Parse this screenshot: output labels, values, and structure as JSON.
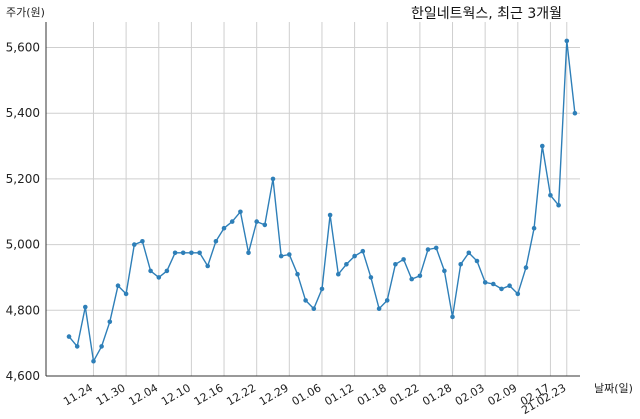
{
  "chart_data": {
    "type": "line",
    "title": "한일네트웍스, 최근 3개월",
    "ylabel": "주가(원)",
    "xlabel": "날짜(일)",
    "ylim": [
      4600,
      5700
    ],
    "yticks": [
      4600,
      4800,
      5000,
      5200,
      5400,
      5600
    ],
    "ytick_labels": [
      "4,600",
      "4,800",
      "5,000",
      "5,200",
      "5,400",
      "5,600"
    ],
    "xticks": [
      {
        "index": 3,
        "label": "11.24"
      },
      {
        "index": 7,
        "label": "11.30"
      },
      {
        "index": 11,
        "label": "12.04"
      },
      {
        "index": 15,
        "label": "12.10"
      },
      {
        "index": 19,
        "label": "12.16"
      },
      {
        "index": 23,
        "label": "12.22"
      },
      {
        "index": 27,
        "label": "12.29"
      },
      {
        "index": 31,
        "label": "01.06"
      },
      {
        "index": 35,
        "label": "01.12"
      },
      {
        "index": 39,
        "label": "01.18"
      },
      {
        "index": 43,
        "label": "01.22"
      },
      {
        "index": 47,
        "label": "01.28"
      },
      {
        "index": 51,
        "label": "02.03"
      },
      {
        "index": 55,
        "label": "02.09"
      },
      {
        "index": 59,
        "label": "02.17"
      },
      {
        "index": 61,
        "label": "21.02.23"
      }
    ],
    "grid": true,
    "color": "#2e7fb8",
    "values": [
      4720,
      4690,
      4810,
      4645,
      4690,
      4765,
      4875,
      4850,
      5000,
      5010,
      4920,
      4900,
      4920,
      4975,
      4975,
      4975,
      4975,
      4935,
      5010,
      5050,
      5070,
      5100,
      4975,
      5070,
      5060,
      5200,
      4965,
      4970,
      4910,
      4830,
      4805,
      4865,
      5090,
      4910,
      4940,
      4965,
      4980,
      4900,
      4805,
      4830,
      4940,
      4955,
      4895,
      4905,
      4985,
      4990,
      4920,
      4780,
      4940,
      4975,
      4950,
      4885,
      4880,
      4865,
      4875,
      4850,
      4930,
      5050,
      5300,
      5150,
      5120,
      5620,
      5400
    ]
  }
}
